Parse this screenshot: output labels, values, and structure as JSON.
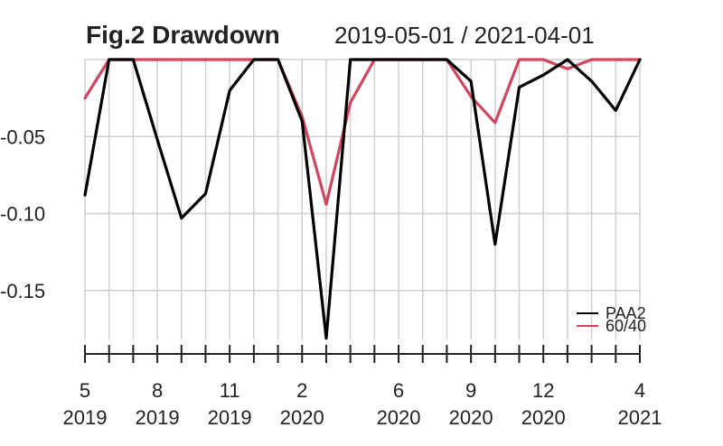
{
  "chart_data": {
    "type": "line",
    "title": "Fig.2 Drawdown",
    "subtitle": "2019-05-01 / 2021-04-01",
    "x": [
      "2019-05",
      "2019-06",
      "2019-07",
      "2019-08",
      "2019-09",
      "2019-10",
      "2019-11",
      "2019-12",
      "2020-01",
      "2020-02",
      "2020-03",
      "2020-04",
      "2020-05",
      "2020-06",
      "2020-07",
      "2020-08",
      "2020-09",
      "2020-10",
      "2020-11",
      "2020-12",
      "2021-01",
      "2021-02",
      "2021-03",
      "2021-04"
    ],
    "series": [
      {
        "name": "PAA2",
        "color": "#000000",
        "values": [
          -0.088,
          0.0,
          0.0,
          -0.052,
          -0.103,
          -0.087,
          -0.02,
          0.0,
          0.0,
          -0.04,
          -0.181,
          0.0,
          0.0,
          0.0,
          0.0,
          0.0,
          -0.014,
          -0.12,
          -0.018,
          -0.01,
          0.0,
          -0.014,
          -0.033,
          0.0
        ]
      },
      {
        "name": "60/40",
        "color": "#D0455F",
        "values": [
          -0.025,
          0.0,
          0.0,
          0.0,
          0.0,
          0.0,
          0.0,
          0.0,
          0.0,
          -0.037,
          -0.094,
          -0.028,
          0.0,
          0.0,
          0.0,
          0.0,
          -0.024,
          -0.041,
          0.0,
          0.0,
          -0.006,
          0.0,
          0.0,
          0.0
        ]
      }
    ],
    "ylim": [
      -0.19,
      0.0
    ],
    "y_ticks": [
      -0.05,
      -0.1,
      -0.15
    ],
    "y_tick_labels": [
      "-0.05",
      "-0.10",
      "-0.15"
    ],
    "x_tick_labels": [
      {
        "idx": 0,
        "month": "5",
        "year": "2019"
      },
      {
        "idx": 3,
        "month": "8",
        "year": "2019"
      },
      {
        "idx": 6,
        "month": "11",
        "year": "2019"
      },
      {
        "idx": 9,
        "month": "2",
        "year": "2020"
      },
      {
        "idx": 13,
        "month": "6",
        "year": "2020"
      },
      {
        "idx": 16,
        "month": "9",
        "year": "2020"
      },
      {
        "idx": 19,
        "month": "12",
        "year": "2020"
      },
      {
        "idx": 23,
        "month": "4",
        "year": "2021"
      }
    ],
    "xlabel": "",
    "ylabel": "",
    "grid": true,
    "legend_position": "bottom-right"
  }
}
